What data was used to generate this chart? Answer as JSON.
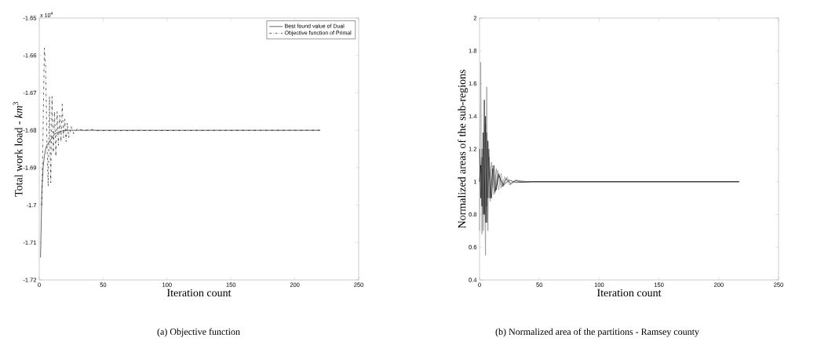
{
  "chart_data": [
    {
      "type": "line",
      "title": "(a) Objective function",
      "xlabel": "Iteration count",
      "ylabel": "Total work load - *km*$^{3}$",
      "annotations": [
        "x 10$^{4}$"
      ],
      "xlim": [
        0,
        250
      ],
      "ylim": [
        -1.72,
        -1.65
      ],
      "xticks": [
        0,
        50,
        100,
        150,
        200,
        250
      ],
      "yticks": [
        -1.72,
        -1.71,
        -1.7,
        -1.69,
        -1.68,
        -1.67,
        -1.66,
        -1.65
      ],
      "legend": "top right",
      "grid": false,
      "series": [
        {
          "name": "Best found value of Dual",
          "color": "#000000",
          "line_style": "solid",
          "x": [
            1,
            2,
            3,
            4,
            5,
            6,
            8,
            10,
            12,
            15,
            20,
            30,
            220
          ],
          "values": [
            -1.714,
            -1.697,
            -1.69,
            -1.687,
            -1.685,
            -1.684,
            -1.683,
            -1.682,
            -1.681,
            -1.6805,
            -1.68,
            -1.68,
            -1.68
          ]
        },
        {
          "name": "Objective function of Primal",
          "color": "#000000",
          "line_style": "dashed",
          "x": [
            2,
            3,
            4,
            5,
            6,
            7,
            8,
            9,
            10,
            11,
            12,
            13,
            14,
            15,
            16,
            17,
            18,
            19,
            20,
            21,
            22,
            23,
            25,
            27,
            30,
            35,
            40,
            45,
            220
          ],
          "values": [
            -1.7,
            -1.68,
            -1.658,
            -1.663,
            -1.683,
            -1.695,
            -1.671,
            -1.694,
            -1.671,
            -1.686,
            -1.675,
            -1.687,
            -1.675,
            -1.684,
            -1.676,
            -1.683,
            -1.673,
            -1.682,
            -1.677,
            -1.683,
            -1.678,
            -1.682,
            -1.679,
            -1.681,
            -1.6795,
            -1.6802,
            -1.6797,
            -1.6801,
            -1.68
          ]
        }
      ]
    },
    {
      "type": "line",
      "title": "(b) Normalized area of the partitions - Ramsey county",
      "xlabel": "Iteration count",
      "ylabel": "Normalized areas of the sub-regions",
      "xlim": [
        0,
        250
      ],
      "ylim": [
        0.4,
        2
      ],
      "xticks": [
        0,
        50,
        100,
        150,
        200,
        250
      ],
      "yticks": [
        0.4,
        0.6,
        0.8,
        1,
        1.2,
        1.4,
        1.6,
        1.8,
        2
      ],
      "legend": false,
      "grid": false,
      "series": [
        {
          "color": "#808080",
          "line_style": "solid",
          "x": [
            0,
            1,
            2,
            3,
            4,
            5,
            6,
            7,
            8,
            10,
            12,
            14,
            16,
            18,
            20,
            23,
            26,
            30,
            35,
            40,
            217
          ],
          "values": [
            0.7,
            1.73,
            0.68,
            1.2,
            0.8,
            1.35,
            0.85,
            1.2,
            0.9,
            1.12,
            0.92,
            1.08,
            0.95,
            1.05,
            0.97,
            1.03,
            0.98,
            1.01,
            0.995,
            1.0,
            1.0
          ]
        },
        {
          "color": "#000000",
          "line_style": "solid",
          "x": [
            0,
            1,
            2,
            3,
            4,
            5,
            6,
            7,
            8,
            10,
            12,
            14,
            16,
            19,
            22,
            26,
            30,
            40,
            217
          ],
          "values": [
            1.2,
            0.9,
            1.15,
            0.8,
            1.5,
            0.75,
            1.3,
            0.9,
            1.15,
            0.9,
            1.1,
            0.95,
            1.05,
            0.97,
            1.02,
            0.99,
            1.005,
            1.0,
            1.0
          ]
        },
        {
          "color": "#808080",
          "line_style": "solid",
          "x": [
            0,
            2,
            3,
            4,
            5,
            6,
            7,
            8,
            9,
            11,
            13,
            15,
            18,
            21,
            25,
            30,
            40,
            217
          ],
          "values": [
            1.0,
            1.2,
            0.7,
            1.0,
            0.55,
            1.58,
            0.7,
            1.2,
            0.88,
            1.1,
            0.93,
            1.07,
            0.96,
            1.03,
            0.98,
            1.01,
            1.0,
            1.0
          ]
        },
        {
          "color": "#000000",
          "line_style": "solid",
          "x": [
            0,
            1,
            2,
            3,
            4,
            5,
            6,
            7,
            9,
            11,
            13,
            16,
            20,
            25,
            30,
            45,
            217
          ],
          "values": [
            1.0,
            1.1,
            0.85,
            1.3,
            0.8,
            1.4,
            0.75,
            1.25,
            0.9,
            1.08,
            0.94,
            1.04,
            0.98,
            1.01,
            0.995,
            1.0,
            1.0
          ]
        }
      ]
    }
  ]
}
